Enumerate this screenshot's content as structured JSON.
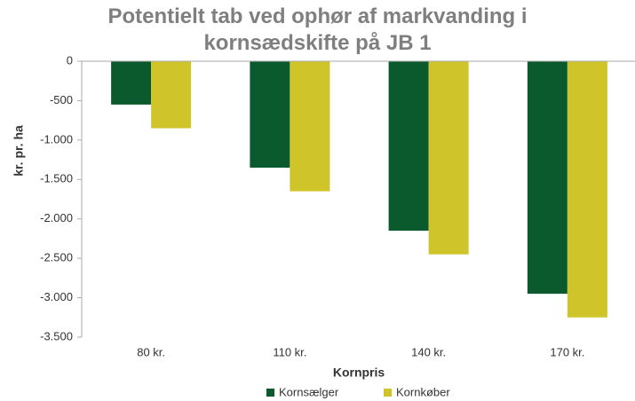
{
  "chart_data": {
    "type": "bar",
    "title": "Potentielt tab ved ophør af markvanding i kornsædskifte på JB 1",
    "x_label": "Kornpris",
    "y_label": "kr. pr. ha",
    "categories": [
      "80 kr.",
      "110 kr.",
      "140 kr.",
      "170 kr."
    ],
    "series": [
      {
        "name": "Kornsælger",
        "color": "#0a5a2e",
        "values": [
          -550,
          -1350,
          -2150,
          -2950
        ]
      },
      {
        "name": "Kornkøber",
        "color": "#cfc42a",
        "values": [
          -850,
          -1650,
          -2450,
          -3250
        ]
      }
    ],
    "ylim": [
      -3500,
      0
    ],
    "yticks": [
      0,
      -500,
      {
        "value": -1000,
        "label": "-1.000"
      },
      {
        "value": -1500,
        "label": "-1.500"
      },
      {
        "value": -2000,
        "label": "-2.000"
      },
      {
        "value": -2500,
        "label": "-2.500"
      },
      {
        "value": -3000,
        "label": "-3.000"
      },
      {
        "value": -3500,
        "label": "-3.500"
      }
    ],
    "grid": false,
    "legend": "bottom"
  }
}
